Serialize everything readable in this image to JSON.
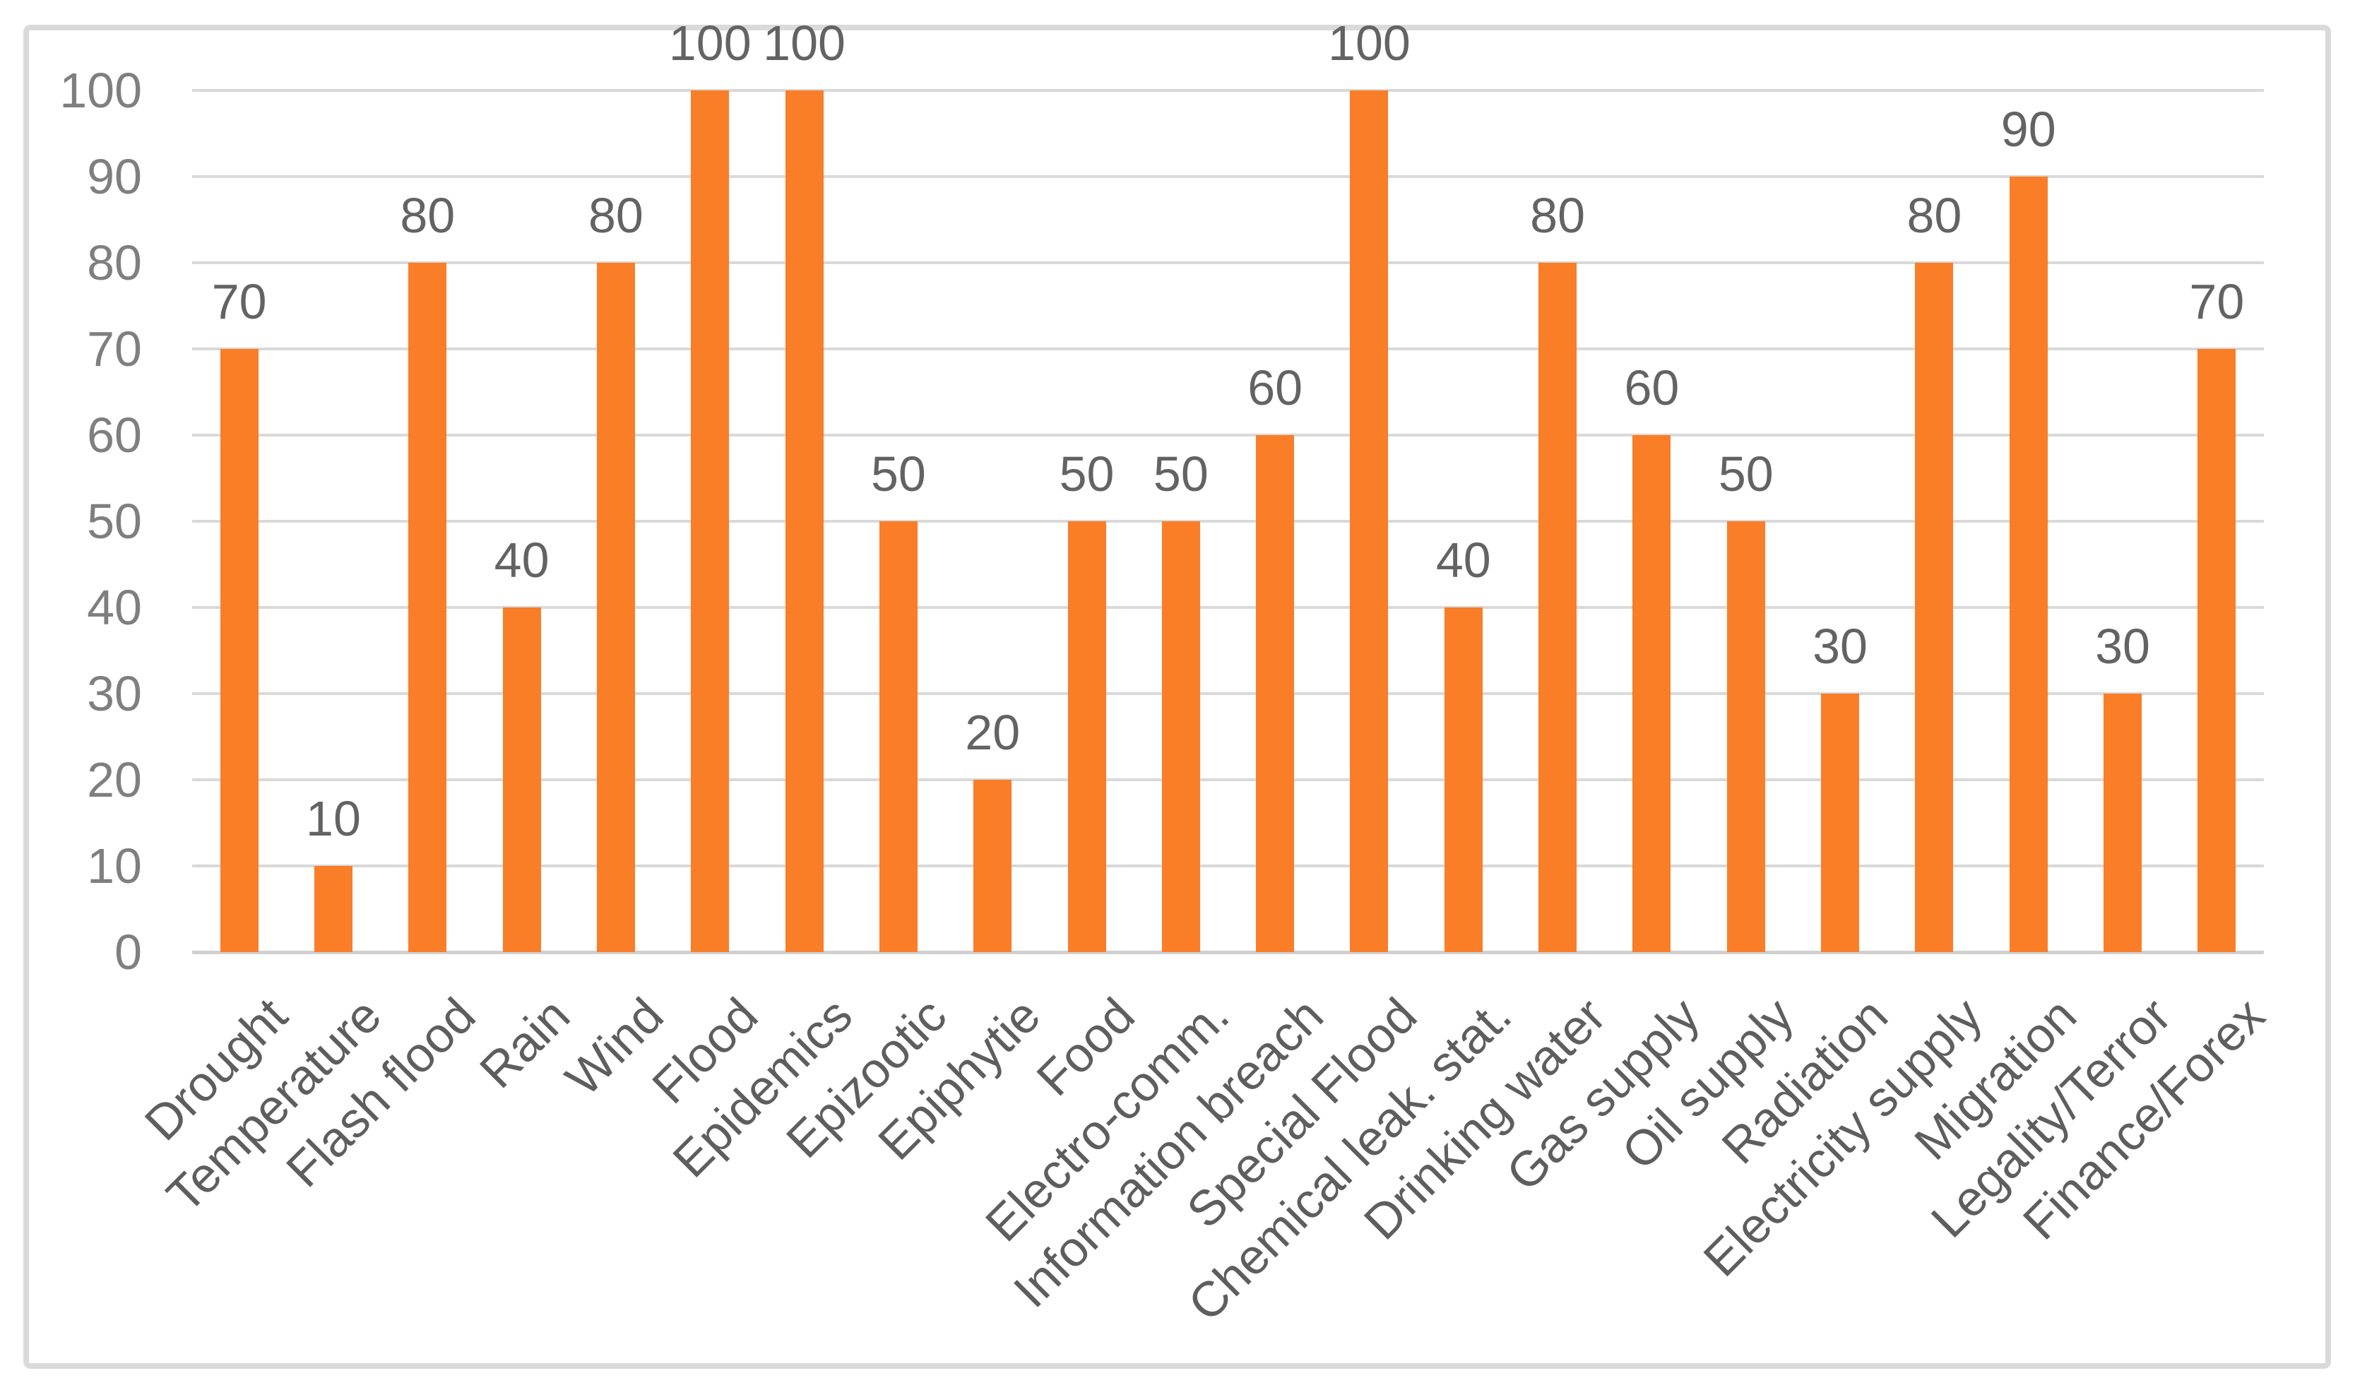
{
  "chart_data": {
    "type": "bar",
    "title": "",
    "xlabel": "",
    "ylabel": "",
    "categories": [
      "Drought",
      "Temperature",
      "Flash flood",
      "Rain",
      "Wind",
      "Flood",
      "Epidemics",
      "Epizootic",
      "Epiphytie",
      "Food",
      "Electro-comm.",
      "Information breach",
      "Special Flood",
      "Chemical leak. stat.",
      "Drinking water",
      "Gas supply",
      "Oil supply",
      "Radiation",
      "Electricity supply",
      "Migration",
      "Legality/Terror",
      "Finance/Forex"
    ],
    "values": [
      70,
      10,
      80,
      40,
      80,
      100,
      100,
      50,
      20,
      50,
      50,
      60,
      100,
      40,
      80,
      60,
      50,
      30,
      80,
      90,
      30,
      70
    ],
    "data_labels": [
      70,
      10,
      80,
      40,
      80,
      100,
      100,
      50,
      20,
      50,
      50,
      60,
      100,
      40,
      80,
      60,
      50,
      30,
      80,
      90,
      30,
      70
    ],
    "ylim": [
      0,
      100
    ],
    "yticks": [
      0,
      10,
      20,
      30,
      40,
      50,
      60,
      70,
      80,
      90,
      100
    ],
    "grid": "horizontal",
    "legend": "none",
    "category_label_rotation_deg": 45,
    "colors": {
      "bar": "#FA7D28",
      "gridline": "#D9D9D9",
      "axis_line": "#D0D0D0",
      "tick_label": "#7F7F7F",
      "value_label": "#636363",
      "category_label": "#5E5E5E",
      "frame_border": "#DADADA",
      "background": "#FFFFFF"
    }
  }
}
